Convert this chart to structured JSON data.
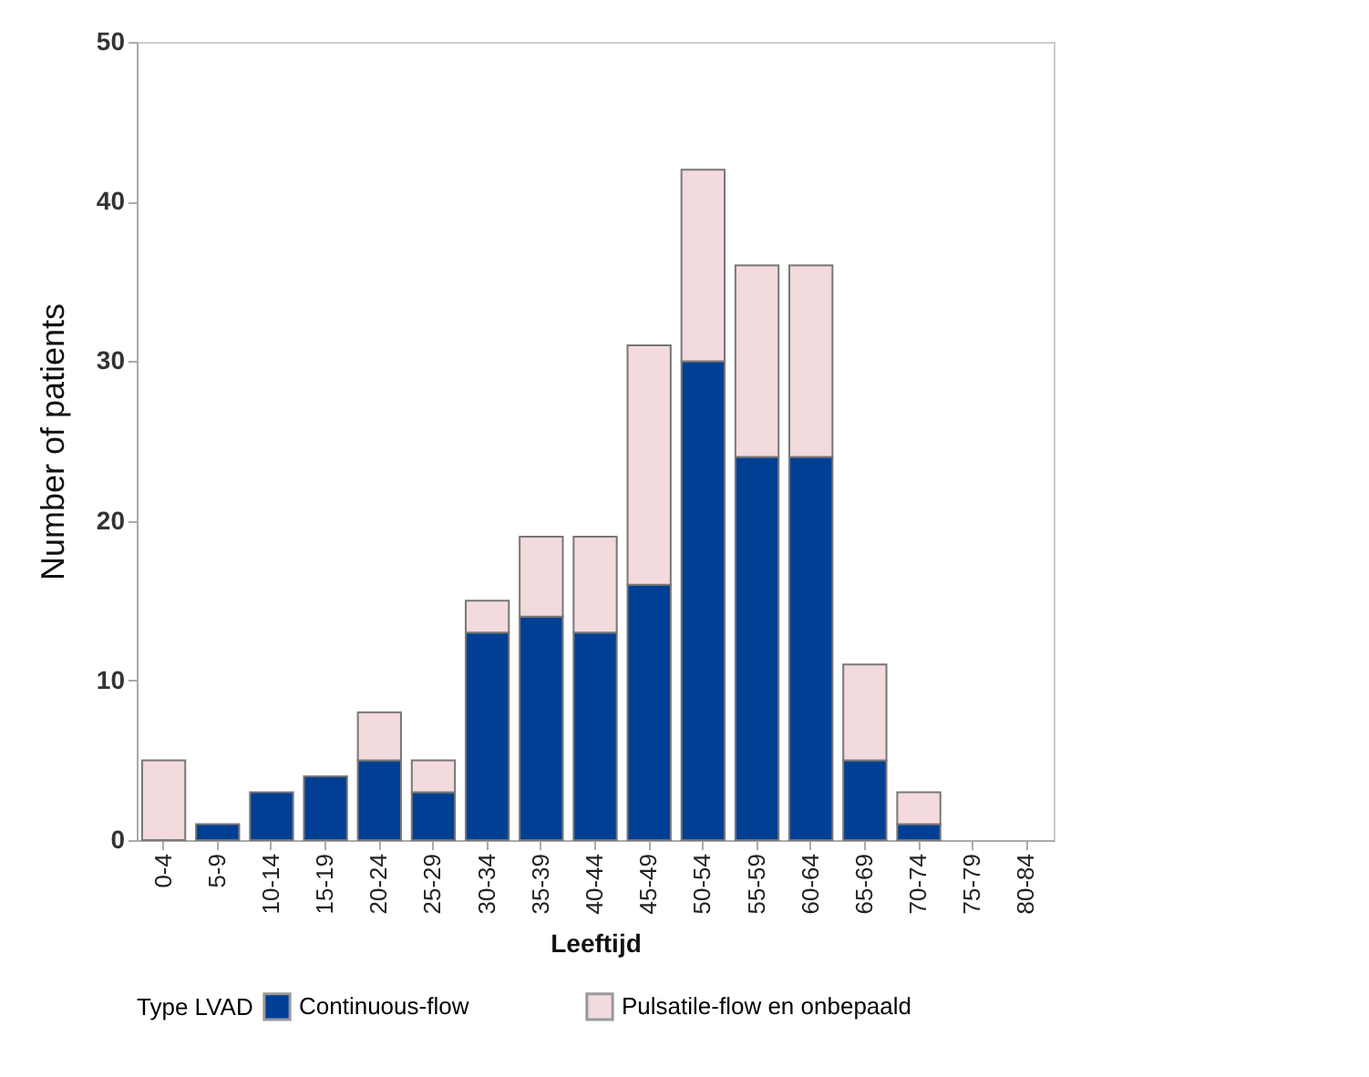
{
  "chart_data": {
    "type": "bar",
    "stacked": true,
    "xlabel": "Leeftijd",
    "ylabel": "Number of patients",
    "legend_title": "Type LVAD",
    "legend": "bottom",
    "categories": [
      "0-4",
      "5-9",
      "10-14",
      "15-19",
      "20-24",
      "25-29",
      "30-34",
      "35-39",
      "40-44",
      "45-49",
      "50-54",
      "55-59",
      "60-64",
      "65-69",
      "70-74",
      "75-79",
      "80-84"
    ],
    "series": [
      {
        "name": "Continuous-flow",
        "color": "#003f94",
        "values": [
          0,
          1,
          3,
          4,
          5,
          3,
          13,
          14,
          13,
          16,
          30,
          24,
          24,
          5,
          1,
          0,
          0
        ]
      },
      {
        "name": "Pulsatile-flow en onbepaald",
        "color": "#f3dadd",
        "values": [
          5,
          0,
          0,
          0,
          3,
          2,
          2,
          5,
          6,
          15,
          12,
          12,
          12,
          6,
          2,
          0,
          0
        ]
      }
    ],
    "ylim": [
      0,
      50
    ],
    "yticks": [
      0,
      10,
      20,
      30,
      40,
      50
    ],
    "grid": false
  }
}
